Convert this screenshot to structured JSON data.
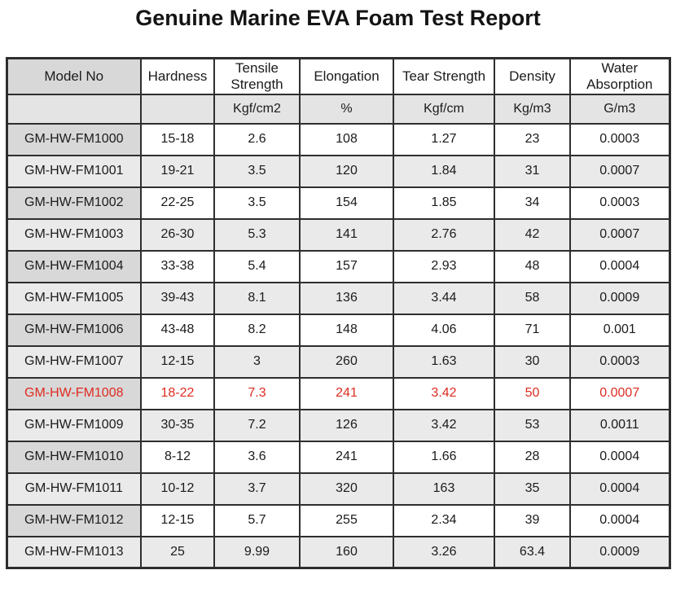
{
  "title": "Genuine Marine EVA Foam Test Report",
  "colors": {
    "highlight_red": "#dd2b20",
    "model_cell_gray": "#d8d8d8",
    "alt_row_gray": "#eaeaea",
    "border_dark": "#2e2e2e"
  },
  "table": {
    "columns": [
      "Model No",
      "Hardness",
      "Tensile Strength",
      "Elongation",
      "Tear Strength",
      "Density",
      "Water Absorption"
    ],
    "units": [
      "",
      "",
      "Kgf/cm2",
      "%",
      "Kgf/cm",
      "Kg/m3",
      "G/m3"
    ],
    "rows": [
      {
        "highlight": false,
        "cells": [
          "GM-HW-FM1000",
          "15-18",
          "2.6",
          "108",
          "1.27",
          "23",
          "0.0003"
        ]
      },
      {
        "highlight": false,
        "cells": [
          "GM-HW-FM1001",
          "19-21",
          "3.5",
          "120",
          "1.84",
          "31",
          "0.0007"
        ]
      },
      {
        "highlight": false,
        "cells": [
          "GM-HW-FM1002",
          "22-25",
          "3.5",
          "154",
          "1.85",
          "34",
          "0.0003"
        ]
      },
      {
        "highlight": false,
        "cells": [
          "GM-HW-FM1003",
          "26-30",
          "5.3",
          "141",
          "2.76",
          "42",
          "0.0007"
        ]
      },
      {
        "highlight": false,
        "cells": [
          "GM-HW-FM1004",
          "33-38",
          "5.4",
          "157",
          "2.93",
          "48",
          "0.0004"
        ]
      },
      {
        "highlight": false,
        "cells": [
          "GM-HW-FM1005",
          "39-43",
          "8.1",
          "136",
          "3.44",
          "58",
          "0.0009"
        ]
      },
      {
        "highlight": false,
        "cells": [
          "GM-HW-FM1006",
          "43-48",
          "8.2",
          "148",
          "4.06",
          "71",
          "0.001"
        ]
      },
      {
        "highlight": false,
        "cells": [
          "GM-HW-FM1007",
          "12-15",
          "3",
          "260",
          "1.63",
          "30",
          "0.0003"
        ]
      },
      {
        "highlight": true,
        "cells": [
          "GM-HW-FM1008",
          "18-22",
          "7.3",
          "241",
          "3.42",
          "50",
          "0.0007"
        ]
      },
      {
        "highlight": false,
        "cells": [
          "GM-HW-FM1009",
          "30-35",
          "7.2",
          "126",
          "3.42",
          "53",
          "0.0011"
        ]
      },
      {
        "highlight": false,
        "cells": [
          "GM-HW-FM1010",
          "8-12",
          "3.6",
          "241",
          "1.66",
          "28",
          "0.0004"
        ]
      },
      {
        "highlight": false,
        "cells": [
          "GM-HW-FM1011",
          "10-12",
          "3.7",
          "320",
          "163",
          "35",
          "0.0004"
        ]
      },
      {
        "highlight": false,
        "cells": [
          "GM-HW-FM1012",
          "12-15",
          "5.7",
          "255",
          "2.34",
          "39",
          "0.0004"
        ]
      },
      {
        "highlight": false,
        "cells": [
          "GM-HW-FM1013",
          "25",
          "9.99",
          "160",
          "3.26",
          "63.4",
          "0.0009"
        ]
      }
    ]
  }
}
